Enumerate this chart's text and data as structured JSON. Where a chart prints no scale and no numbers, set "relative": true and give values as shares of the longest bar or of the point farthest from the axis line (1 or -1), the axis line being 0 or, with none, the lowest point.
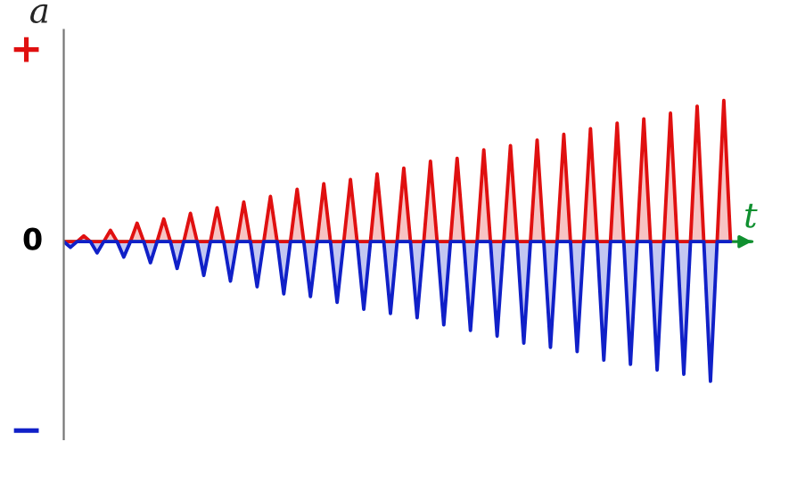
{
  "chart_data": {
    "type": "area",
    "relative": true,
    "xlabel": "t",
    "ylabel": "a",
    "annotations": [
      "0",
      "+",
      "−"
    ],
    "ref_lines": [
      {
        "axis": "y",
        "value": 0,
        "color": "#109030"
      }
    ],
    "categories": [
      null,
      null,
      null,
      null,
      null,
      null,
      null,
      null,
      null,
      null,
      null,
      null,
      null,
      null,
      null,
      null,
      null,
      null,
      null,
      null,
      null,
      null,
      null,
      null,
      null,
      null,
      null,
      null,
      null,
      null,
      null,
      null,
      null,
      null,
      null,
      null,
      null,
      null,
      null,
      null,
      null,
      null,
      null,
      null,
      null,
      null,
      null,
      null,
      null,
      null,
      null,
      null,
      null,
      null,
      null,
      null,
      null,
      null,
      null,
      null,
      null,
      null,
      null,
      null,
      null,
      null,
      null,
      null,
      null,
      null,
      null,
      null,
      null,
      null,
      null,
      null,
      null,
      null,
      null,
      null,
      null,
      null,
      null,
      null,
      null,
      null,
      null,
      null,
      null,
      null,
      null,
      null,
      null,
      null,
      null,
      null,
      null,
      null,
      null,
      null,
      null
    ],
    "series": [
      {
        "color": "#e01010",
        "values": [
          0,
          0,
          0,
          0.04,
          0,
          0,
          0,
          0.08,
          0,
          0,
          0,
          0.13,
          0,
          0,
          0,
          0.16,
          0,
          0,
          0,
          0.2,
          0,
          0,
          0,
          0.24,
          0,
          0,
          0,
          0.28,
          0,
          0,
          0,
          0.32,
          0,
          0,
          0,
          0.37,
          0,
          0,
          0,
          0.41,
          0,
          0,
          0,
          0.44,
          0,
          0,
          0,
          0.48,
          0,
          0,
          0,
          0.52,
          0,
          0,
          0,
          0.57,
          0,
          0,
          0,
          0.59,
          0,
          0,
          0,
          0.65,
          0,
          0,
          0,
          0.68,
          0,
          0,
          0,
          0.72,
          0,
          0,
          0,
          0.76,
          0,
          0,
          0,
          0.8,
          0,
          0,
          0,
          0.84,
          0,
          0,
          0,
          0.87,
          0,
          0,
          0,
          0.91,
          0,
          0,
          0,
          0.96,
          0,
          0,
          0,
          1,
          0
        ]
      },
      {
        "color": "#1020c8",
        "values": [
          0,
          -0.04,
          0,
          0,
          0,
          -0.08,
          0,
          0,
          0,
          -0.11,
          0,
          0,
          0,
          -0.15,
          0,
          0,
          0,
          -0.19,
          0,
          0,
          0,
          -0.24,
          0,
          0,
          0,
          -0.28,
          0,
          0,
          0,
          -0.32,
          0,
          0,
          0,
          -0.37,
          0,
          0,
          0,
          -0.39,
          0,
          0,
          0,
          -0.43,
          0,
          0,
          0,
          -0.48,
          0,
          0,
          0,
          -0.51,
          0,
          0,
          0,
          -0.54,
          0,
          0,
          0,
          -0.59,
          0,
          0,
          0,
          -0.63,
          0,
          0,
          0,
          -0.67,
          0,
          0,
          0,
          -0.72,
          0,
          0,
          0,
          -0.75,
          0,
          0,
          0,
          -0.78,
          0,
          0,
          0,
          -0.84,
          0,
          0,
          0,
          -0.87,
          0,
          0,
          0,
          -0.91,
          0,
          0,
          0,
          -0.94,
          0,
          0,
          0,
          -0.99,
          0,
          0,
          0
        ]
      }
    ]
  }
}
